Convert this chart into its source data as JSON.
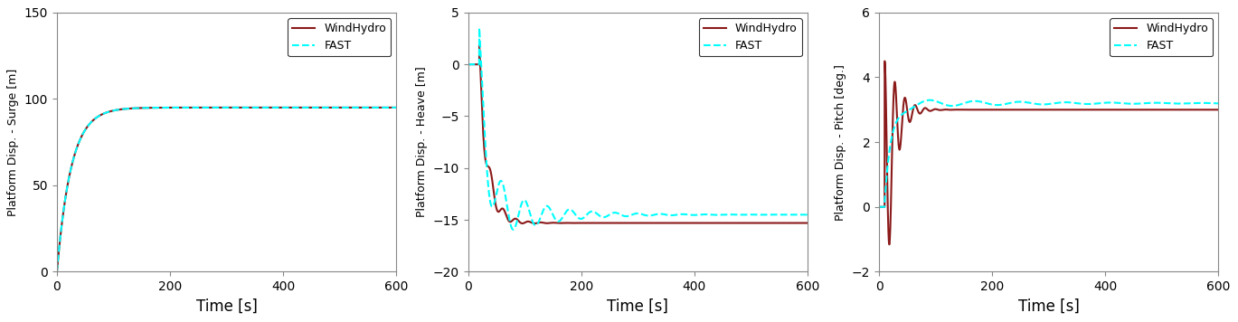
{
  "fast_color": "#00FFFF",
  "windhydro_color": "#8B1A1A",
  "fast_linestyle": "--",
  "windhydro_linestyle": "-",
  "linewidth": 1.5,
  "legend_labels": [
    "FAST",
    "WindHydro"
  ],
  "xlabel": "Time [s]",
  "subplot1": {
    "ylabel": "Platform Disp. - Surge [m]",
    "xlim": [
      0,
      600
    ],
    "ylim": [
      0,
      150
    ],
    "yticks": [
      0,
      50,
      100,
      150
    ],
    "xticks": [
      0,
      200,
      400,
      600
    ],
    "fast_steady": 95.0,
    "windhydro_steady": 95.0,
    "tau": 25.0
  },
  "subplot2": {
    "ylabel": "Platform Disp. - Heave [m]",
    "xlim": [
      0,
      600
    ],
    "ylim": [
      -20,
      5
    ],
    "yticks": [
      -20,
      -15,
      -10,
      -5,
      0,
      5
    ],
    "xticks": [
      0,
      200,
      400,
      600
    ],
    "fast_steady": -14.5,
    "windhydro_steady": -15.3,
    "osc_period_fast": 40.0,
    "osc_period_wh": 22.0,
    "osc_decay_fast": 0.012,
    "osc_decay_wh": 0.035,
    "osc_amp_fast": 3.5,
    "osc_amp_wh": 2.0,
    "start_time": 20.0,
    "fast_min": -16.5,
    "wh_min": -17.0
  },
  "subplot3": {
    "ylabel": "Platform Disp. - Pitch [deg.]",
    "xlim": [
      0,
      600
    ],
    "ylim": [
      -2,
      6
    ],
    "yticks": [
      -2,
      0,
      2,
      4,
      6
    ],
    "xticks": [
      0,
      200,
      400,
      600
    ],
    "fast_steady": 3.2,
    "windhydro_steady": 3.0,
    "osc_period_fast": 80.0,
    "osc_period_wh": 18.0,
    "osc_decay_fast": 0.005,
    "osc_decay_wh": 0.06,
    "osc_amp_fast": 0.15,
    "osc_amp_wh": 4.5,
    "start_time": 10.0
  }
}
